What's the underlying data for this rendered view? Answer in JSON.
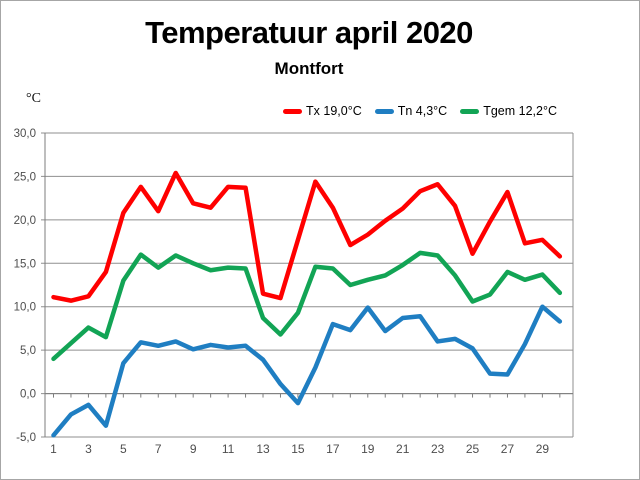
{
  "window": {
    "background": "#ffffff",
    "border_color": "#a6a6a6"
  },
  "chart_data": {
    "type": "line",
    "title": "Temperatuur april 2020",
    "subtitle": "Montfort",
    "y_axis_title": "°C",
    "x": [
      1,
      2,
      3,
      4,
      5,
      6,
      7,
      8,
      9,
      10,
      11,
      12,
      13,
      14,
      15,
      16,
      17,
      18,
      19,
      20,
      21,
      22,
      23,
      24,
      25,
      26,
      27,
      28,
      29,
      30
    ],
    "x_label_days": [
      1,
      3,
      5,
      7,
      9,
      11,
      13,
      15,
      17,
      19,
      21,
      23,
      25,
      27,
      29
    ],
    "ylim": [
      -5,
      30
    ],
    "y_tick_values": [
      30,
      25,
      20,
      15,
      10,
      5,
      0,
      -5
    ],
    "y_tick_labels": [
      "30,0",
      "25,0",
      "20,0",
      "15,0",
      "10,0",
      "5,0",
      "0,0",
      "-5,0"
    ],
    "grid": true,
    "legend_position": "top-right",
    "series": [
      {
        "name": "Tx",
        "legend_label": "Tx 19,0°C",
        "mean": "19,0",
        "color": "#ff0000",
        "values": [
          11.1,
          10.7,
          11.2,
          14.0,
          20.8,
          23.8,
          21.0,
          25.4,
          21.9,
          21.4,
          23.8,
          23.7,
          11.5,
          11.0,
          17.7,
          24.4,
          21.4,
          17.1,
          18.3,
          19.9,
          21.3,
          23.3,
          24.1,
          21.6,
          16.1,
          19.8,
          23.2,
          17.3,
          17.7,
          15.8
        ]
      },
      {
        "name": "Tn",
        "legend_label": "Tn 4,3°C",
        "mean": "4,3",
        "color": "#1f7ec2",
        "values": [
          -4.8,
          -2.4,
          -1.3,
          -3.7,
          3.5,
          5.9,
          5.5,
          6.0,
          5.1,
          5.6,
          5.3,
          5.5,
          3.9,
          1.1,
          -1.1,
          3.0,
          8.0,
          7.3,
          9.9,
          7.2,
          8.7,
          8.9,
          6.0,
          6.3,
          5.2,
          2.3,
          2.2,
          5.7,
          10.0,
          8.3
        ]
      },
      {
        "name": "Tgem",
        "legend_label": "Tgem 12,2°C",
        "mean": "12,2",
        "color": "#12a455",
        "values": [
          4.0,
          5.8,
          7.6,
          6.5,
          13.0,
          16.0,
          14.5,
          15.9,
          15.0,
          14.2,
          14.5,
          14.4,
          8.7,
          6.8,
          9.3,
          14.6,
          14.4,
          12.5,
          13.1,
          13.6,
          14.8,
          16.2,
          15.9,
          13.6,
          10.6,
          11.4,
          14.0,
          13.1,
          13.7,
          11.6
        ]
      }
    ],
    "style": {
      "gridline": "#8f8f8f",
      "axis": "#7d7d7d",
      "tick_label": "#4d4d4d",
      "line_width": 4.5
    }
  }
}
